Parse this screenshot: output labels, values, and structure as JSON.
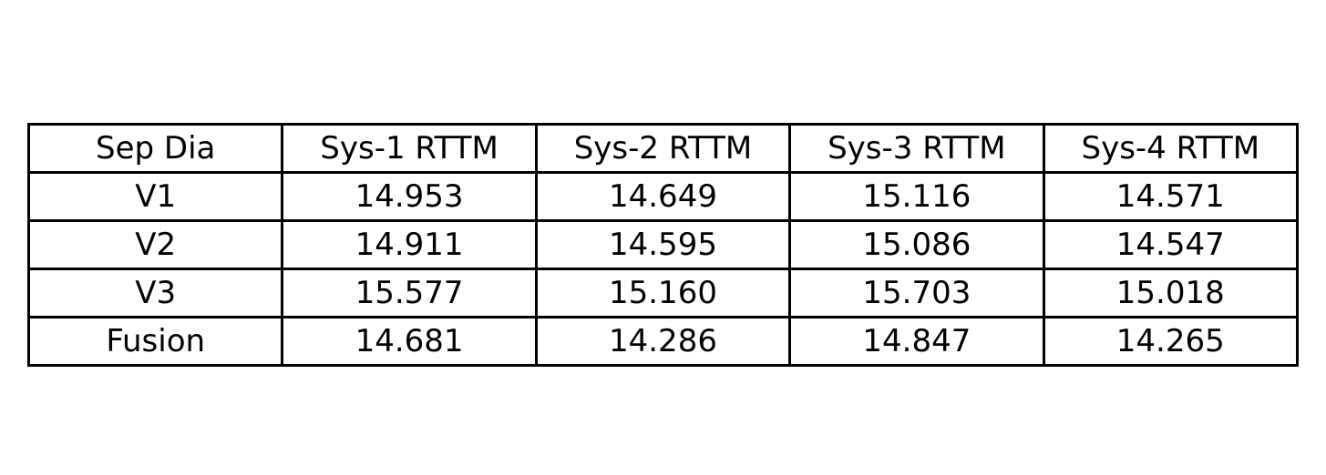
{
  "chart_data": {
    "type": "table",
    "columns": [
      "Sep Dia",
      "Sys-1 RTTM",
      "Sys-2 RTTM",
      "Sys-3 RTTM",
      "Sys-4 RTTM"
    ],
    "rows": [
      [
        "V1",
        "14.953",
        "14.649",
        "15.116",
        "14.571"
      ],
      [
        "V2",
        "14.911",
        "14.595",
        "15.086",
        "14.547"
      ],
      [
        "V3",
        "15.577",
        "15.160",
        "15.703",
        "15.018"
      ],
      [
        "Fusion",
        "14.681",
        "14.286",
        "14.847",
        "14.265"
      ]
    ]
  }
}
